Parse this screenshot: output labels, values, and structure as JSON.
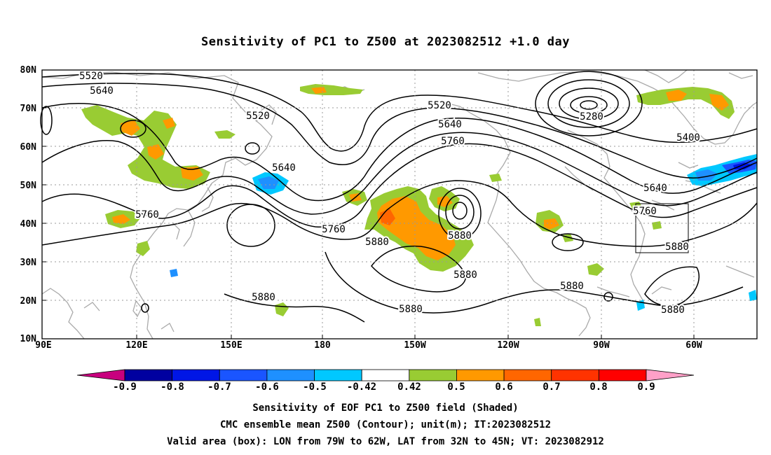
{
  "title": "Sensitivity of PC1 to Z500 at 2023082512 +1.0 day",
  "map": {
    "lat_labels": [
      "80N",
      "70N",
      "60N",
      "50N",
      "40N",
      "30N",
      "20N",
      "10N"
    ],
    "lon_labels": [
      "90E",
      "120E",
      "150E",
      "180",
      "150W",
      "120W",
      "90W",
      "60W"
    ],
    "contour_labels": [
      "5520",
      "5640",
      "5520",
      "5640",
      "5520",
      "5640",
      "5760",
      "5280",
      "5400",
      "5640",
      "5760",
      "5880",
      "5760",
      "5880",
      "5760",
      "5880",
      "5880",
      "5880",
      "5880",
      "5880"
    ]
  },
  "colorbar": {
    "levels": [
      "-0.9",
      "-0.8",
      "-0.7",
      "-0.6",
      "-0.5",
      "-0.42",
      "0.42",
      "0.5",
      "0.6",
      "0.7",
      "0.8",
      "0.9"
    ],
    "colors": [
      "#c8007e",
      "#0000a0",
      "#0016e6",
      "#1a55ff",
      "#1e90ff",
      "#00c8ff",
      "#ffffff",
      "#99cc33",
      "#ff9900",
      "#ff6600",
      "#ff3300",
      "#ff0000",
      "#ffa0c8"
    ]
  },
  "captions": {
    "line1": "Sensitivity of EOF PC1 to Z500 field (Shaded)",
    "line2": "CMC ensemble mean Z500 (Contour); unit(m); IT:2023082512",
    "line3": "Valid area (box): LON from 79W to 62W, LAT from 32N to 45N; VT: 2023082912"
  }
}
